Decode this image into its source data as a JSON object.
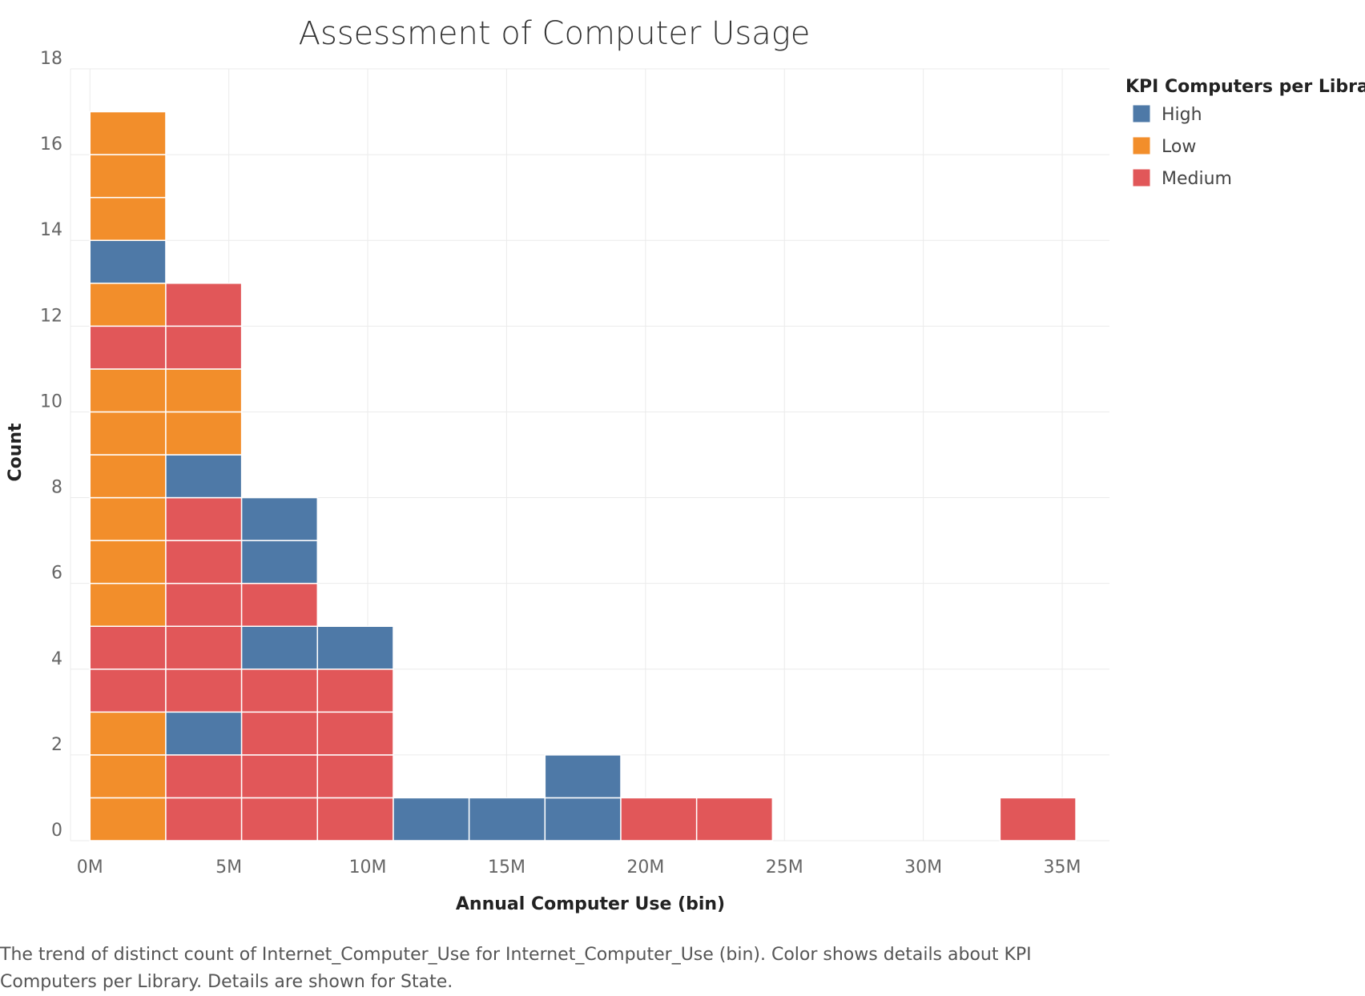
{
  "chart_data": {
    "type": "bar",
    "title": "Assessment of Computer Usage",
    "xlabel": "Annual Computer Use (bin)",
    "ylabel": "Count",
    "ylim": [
      0,
      18
    ],
    "yticks": [
      0,
      2,
      4,
      6,
      8,
      10,
      12,
      14,
      16,
      18
    ],
    "xlim": [
      -0.7,
      36.7
    ],
    "xticks": [
      {
        "value": 0,
        "label": "0M"
      },
      {
        "value": 5,
        "label": "5M"
      },
      {
        "value": 10,
        "label": "10M"
      },
      {
        "value": 15,
        "label": "15M"
      },
      {
        "value": 20,
        "label": "20M"
      },
      {
        "value": 25,
        "label": "25M"
      },
      {
        "value": 30,
        "label": "30M"
      },
      {
        "value": 35,
        "label": "35M"
      }
    ],
    "grid": true,
    "legend_placement": "top-right",
    "legend_title": "KPI Computers per Library",
    "categories_colors": {
      "High": "#4e79a7",
      "Low": "#f28e2b",
      "Medium": "#e15759"
    },
    "legend": [
      "High",
      "Low",
      "Medium"
    ],
    "bins": [
      {
        "start": 0.0,
        "end": 2.73,
        "stack": [
          "Low",
          "Low",
          "Low",
          "Medium",
          "Medium",
          "Low",
          "Low",
          "Low",
          "Low",
          "Low",
          "Low",
          "Medium",
          "Low",
          "High",
          "Low",
          "Low",
          "Low"
        ]
      },
      {
        "start": 2.73,
        "end": 5.46,
        "stack": [
          "Medium",
          "Medium",
          "High",
          "Medium",
          "Medium",
          "Medium",
          "Medium",
          "Medium",
          "High",
          "Low",
          "Low",
          "Medium",
          "Medium"
        ]
      },
      {
        "start": 5.46,
        "end": 8.19,
        "stack": [
          "Medium",
          "Medium",
          "Medium",
          "Medium",
          "High",
          "Medium",
          "High",
          "High"
        ]
      },
      {
        "start": 8.19,
        "end": 10.92,
        "stack": [
          "Medium",
          "Medium",
          "Medium",
          "Medium",
          "High"
        ]
      },
      {
        "start": 10.92,
        "end": 13.65,
        "stack": [
          "High"
        ]
      },
      {
        "start": 13.65,
        "end": 16.38,
        "stack": [
          "High"
        ]
      },
      {
        "start": 16.38,
        "end": 19.11,
        "stack": [
          "High",
          "High"
        ]
      },
      {
        "start": 19.11,
        "end": 21.84,
        "stack": [
          "Medium"
        ]
      },
      {
        "start": 21.84,
        "end": 24.57,
        "stack": [
          "Medium"
        ]
      },
      {
        "start": 32.76,
        "end": 35.49,
        "stack": [
          "Medium"
        ]
      }
    ]
  },
  "caption": "The trend of distinct count of Internet_Computer_Use for Internet_Computer_Use (bin).  Color shows details about KPI Computers per Library.  Details are shown for State."
}
